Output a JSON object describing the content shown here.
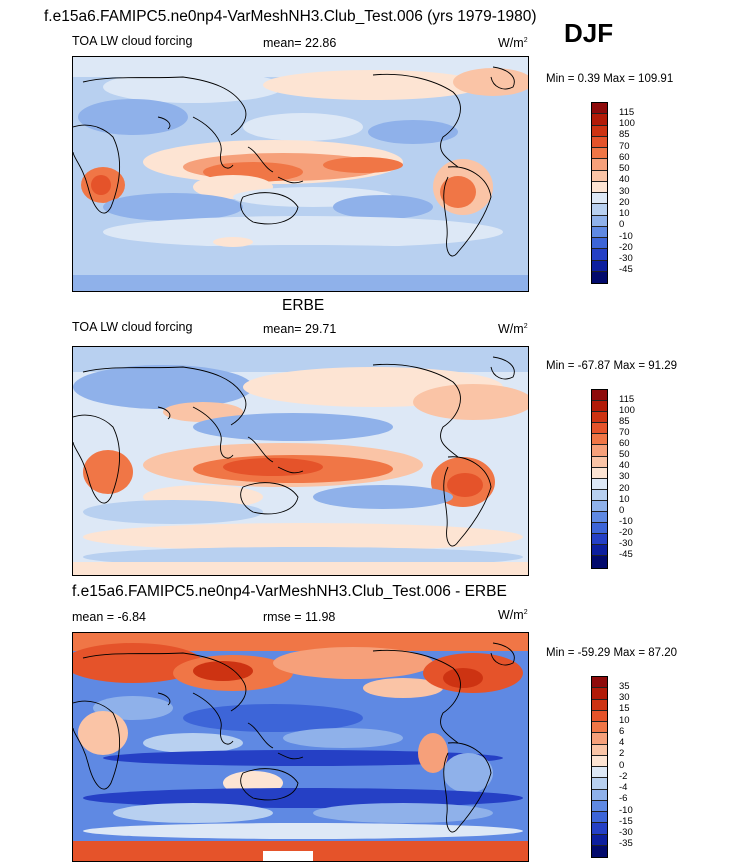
{
  "title": "f.e15a6.FAMIPC5.ne0np4-VarMeshNH3.Club_Test.006 (yrs 1979-1980)",
  "season": "DJF",
  "panels": [
    {
      "subtitle": "",
      "left_label": "TOA LW cloud forcing",
      "mid_label": "mean=  22.86",
      "units": "W/m",
      "units_sup": "2",
      "minmax": "Min =   0.39 Max = 109.91",
      "levels": [
        "115",
        "100",
        "85",
        "70",
        "60",
        "50",
        "40",
        "30",
        "20",
        "10",
        "0",
        "-10",
        "-20",
        "-30",
        "-45"
      ],
      "colors": [
        "#8e0b0b",
        "#b21b08",
        "#cd3312",
        "#e5532a",
        "#f07646",
        "#f6a07a",
        "#fac4a6",
        "#fde4d3",
        "#dde8f6",
        "#b8d0f0",
        "#8fb1ea",
        "#5f89e3",
        "#3d65d8",
        "#2540c5",
        "#0d1f9e",
        "#020a6c"
      ]
    },
    {
      "subtitle": "ERBE",
      "left_label": "TOA LW cloud forcing",
      "mid_label": "mean=  29.71",
      "units": "W/m",
      "units_sup": "2",
      "minmax": "Min = -67.87 Max =  91.29",
      "levels": [
        "115",
        "100",
        "85",
        "70",
        "60",
        "50",
        "40",
        "30",
        "20",
        "10",
        "0",
        "-10",
        "-20",
        "-30",
        "-45"
      ],
      "colors": [
        "#8e0b0b",
        "#b21b08",
        "#cd3312",
        "#e5532a",
        "#f07646",
        "#f6a07a",
        "#fac4a6",
        "#fde4d3",
        "#dde8f6",
        "#b8d0f0",
        "#8fb1ea",
        "#5f89e3",
        "#3d65d8",
        "#2540c5",
        "#0d1f9e",
        "#020a6c"
      ]
    },
    {
      "subtitle": "f.e15a6.FAMIPC5.ne0np4-VarMeshNH3.Club_Test.006 - ERBE",
      "left_label": "mean =  -6.84",
      "mid_label": "rmse =  11.98",
      "units": "W/m",
      "units_sup": "2",
      "minmax": "Min = -59.29 Max =  87.20",
      "levels": [
        "35",
        "30",
        "15",
        "10",
        "6",
        "4",
        "2",
        "0",
        "-2",
        "-4",
        "-6",
        "-10",
        "-15",
        "-30",
        "-35"
      ],
      "colors": [
        "#8e0b0b",
        "#b21b08",
        "#cd3312",
        "#e5532a",
        "#f07646",
        "#f6a07a",
        "#fac4a6",
        "#fde4d3",
        "#dde8f6",
        "#b8d0f0",
        "#8fb1ea",
        "#5f89e3",
        "#3d65d8",
        "#2540c5",
        "#0d1f9e",
        "#020a6c"
      ]
    }
  ]
}
